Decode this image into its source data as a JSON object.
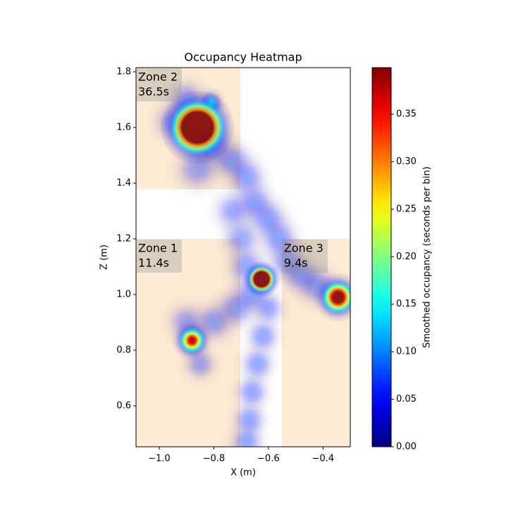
{
  "chart_data": {
    "type": "heatmap",
    "title": "Occupancy Heatmap",
    "x_label": "X (m)",
    "y_label": "Z (m)",
    "colorbar_label": "Smoothed occupancy (seconds per bin)",
    "colormap": "jet",
    "xlim": [
      -1.085,
      -0.3
    ],
    "ylim": [
      0.453,
      1.815
    ],
    "clim": [
      0,
      0.399
    ],
    "xticks": [
      {
        "value": -1.0,
        "label": "−1.0"
      },
      {
        "value": -0.8,
        "label": "−0.8"
      },
      {
        "value": -0.6,
        "label": "−0.6"
      },
      {
        "value": -0.4,
        "label": "−0.4"
      }
    ],
    "yticks": [
      0.6,
      0.8,
      {
        "value": 1.0,
        "label": "1.0"
      },
      1.2,
      1.4,
      1.6,
      1.8
    ],
    "cticks": [
      {
        "value": 0,
        "label": "0.00"
      },
      {
        "value": 0.05,
        "label": "0.05"
      },
      {
        "value": 0.1,
        "label": "0.10"
      },
      {
        "value": 0.15,
        "label": "0.15"
      },
      {
        "value": 0.2,
        "label": "0.20"
      },
      {
        "value": 0.25,
        "label": "0.25"
      },
      {
        "value": 0.3,
        "label": "0.30"
      },
      {
        "value": 0.35,
        "label": "0.35"
      }
    ],
    "zone_color": "#fdebd3",
    "zones": [
      {
        "name": "Zone 2",
        "time": 36.5,
        "time_label": "36.5s",
        "x": [
          -1.085,
          -0.703
        ],
        "y": [
          1.378,
          1.815
        ]
      },
      {
        "name": "Zone 1",
        "time": 11.4,
        "time_label": "11.4s",
        "x": [
          -1.085,
          -0.703
        ],
        "y": [
          0.453,
          1.2
        ]
      },
      {
        "name": "Zone 3",
        "time": 9.4,
        "time_label": "9.4s",
        "x": [
          -0.551,
          -0.3
        ],
        "y": [
          0.453,
          1.2
        ]
      }
    ],
    "blobs": [
      {
        "x": -0.9,
        "y": 1.7,
        "peak": 0.08,
        "sigma": 0.035
      },
      {
        "x": -0.95,
        "y": 1.62,
        "peak": 0.07,
        "sigma": 0.035
      },
      {
        "x": -0.8,
        "y": 1.53,
        "peak": 0.08,
        "sigma": 0.04
      },
      {
        "x": -0.86,
        "y": 1.45,
        "peak": 0.07,
        "sigma": 0.04
      },
      {
        "x": -0.73,
        "y": 1.48,
        "peak": 0.08,
        "sigma": 0.035
      },
      {
        "x": -0.68,
        "y": 1.42,
        "peak": 0.08,
        "sigma": 0.035
      },
      {
        "x": -0.65,
        "y": 1.33,
        "peak": 0.08,
        "sigma": 0.035
      },
      {
        "x": -0.6,
        "y": 1.27,
        "peak": 0.08,
        "sigma": 0.035
      },
      {
        "x": -0.56,
        "y": 1.2,
        "peak": 0.08,
        "sigma": 0.035
      },
      {
        "x": -0.53,
        "y": 1.12,
        "peak": 0.08,
        "sigma": 0.035
      },
      {
        "x": -0.48,
        "y": 1.07,
        "peak": 0.08,
        "sigma": 0.035
      },
      {
        "x": -0.42,
        "y": 1.03,
        "peak": 0.08,
        "sigma": 0.035
      },
      {
        "x": -0.73,
        "y": 1.3,
        "peak": 0.07,
        "sigma": 0.035
      },
      {
        "x": -0.7,
        "y": 1.2,
        "peak": 0.07,
        "sigma": 0.035
      },
      {
        "x": -0.68,
        "y": 1.1,
        "peak": 0.08,
        "sigma": 0.035
      },
      {
        "x": -0.66,
        "y": 1.0,
        "peak": 0.08,
        "sigma": 0.035
      },
      {
        "x": -0.72,
        "y": 0.95,
        "peak": 0.08,
        "sigma": 0.035
      },
      {
        "x": -0.8,
        "y": 0.9,
        "peak": 0.08,
        "sigma": 0.035
      },
      {
        "x": -0.6,
        "y": 0.95,
        "peak": 0.07,
        "sigma": 0.03
      },
      {
        "x": -0.62,
        "y": 0.85,
        "peak": 0.08,
        "sigma": 0.03
      },
      {
        "x": -0.64,
        "y": 0.75,
        "peak": 0.08,
        "sigma": 0.03
      },
      {
        "x": -0.66,
        "y": 0.65,
        "peak": 0.08,
        "sigma": 0.03
      },
      {
        "x": -0.67,
        "y": 0.55,
        "peak": 0.08,
        "sigma": 0.03
      },
      {
        "x": -0.68,
        "y": 0.47,
        "peak": 0.08,
        "sigma": 0.03
      },
      {
        "x": -0.9,
        "y": 0.9,
        "peak": 0.07,
        "sigma": 0.035
      },
      {
        "x": -0.85,
        "y": 0.75,
        "peak": 0.07,
        "sigma": 0.03
      },
      {
        "x": -0.81,
        "y": 1.69,
        "peak": 0.16,
        "sigma": 0.02
      },
      {
        "x": -0.86,
        "y": 1.6,
        "peak": 0.9,
        "sigma": 0.045
      },
      {
        "x": -0.625,
        "y": 1.055,
        "peak": 0.9,
        "sigma": 0.022
      },
      {
        "x": -0.88,
        "y": 0.835,
        "peak": 0.4,
        "sigma": 0.025
      },
      {
        "x": -0.345,
        "y": 0.99,
        "peak": 0.5,
        "sigma": 0.03
      }
    ]
  }
}
